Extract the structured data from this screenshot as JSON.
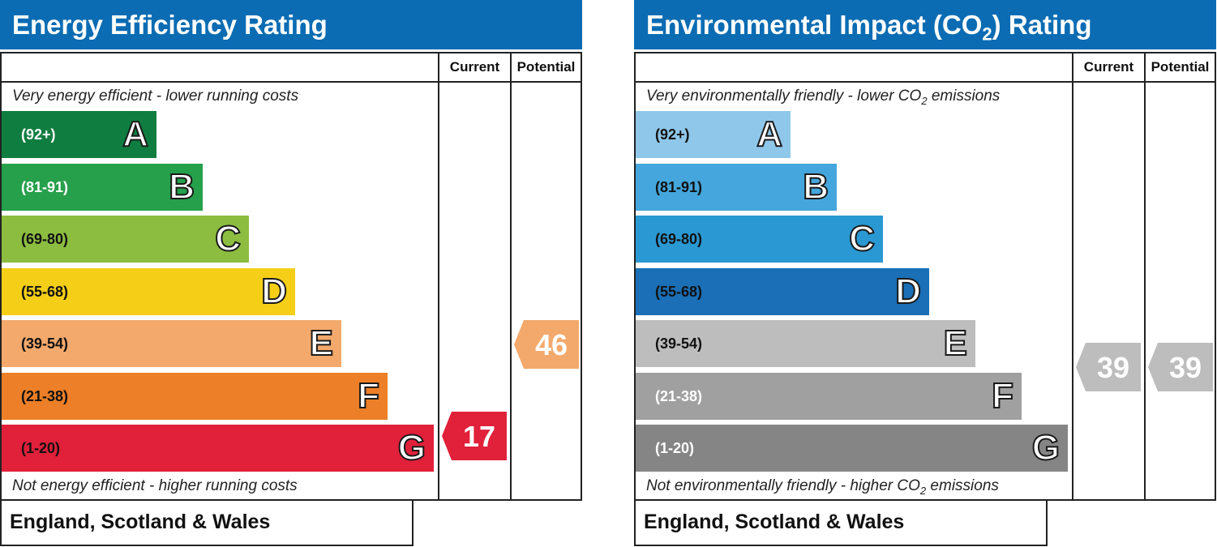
{
  "chart_data": [
    {
      "type": "bar",
      "title": "Energy Efficiency Rating",
      "columns": [
        "Current",
        "Potential"
      ],
      "top_note": "Very energy efficient - lower running costs",
      "bottom_note": "Not energy efficient - higher running costs",
      "footer": "England, Scotland & Wales",
      "bands": [
        {
          "letter": "A",
          "range": "(92+)",
          "min": 92,
          "max": 100,
          "color": "#0f7d3f",
          "text_light": true
        },
        {
          "letter": "B",
          "range": "(81-91)",
          "min": 81,
          "max": 91,
          "color": "#26a04b",
          "text_light": true
        },
        {
          "letter": "C",
          "range": "(69-80)",
          "min": 69,
          "max": 80,
          "color": "#8cbd40",
          "text_light": false
        },
        {
          "letter": "D",
          "range": "(55-68)",
          "min": 55,
          "max": 68,
          "color": "#f5cf17",
          "text_light": false
        },
        {
          "letter": "E",
          "range": "(39-54)",
          "min": 39,
          "max": 54,
          "color": "#f3a96b",
          "text_light": false
        },
        {
          "letter": "F",
          "range": "(21-38)",
          "min": 21,
          "max": 38,
          "color": "#ec7f27",
          "text_light": false
        },
        {
          "letter": "G",
          "range": "(1-20)",
          "min": 1,
          "max": 20,
          "color": "#e1203a",
          "text_light": false
        }
      ],
      "current": {
        "value": 17,
        "band": "G",
        "color": "#e1203a"
      },
      "potential": {
        "value": 46,
        "band": "E",
        "color": "#f3a96b"
      }
    },
    {
      "type": "bar",
      "title_main": "Environmental Impact (CO",
      "title_sub": "2",
      "title_end": ") Rating",
      "columns": [
        "Current",
        "Potential"
      ],
      "top_note_main": "Very environmentally friendly - lower CO",
      "top_note_sub": "2",
      "top_note_end": " emissions",
      "bottom_note_main": "Not environmentally friendly - higher CO",
      "bottom_note_sub": "2",
      "bottom_note_end": " emissions",
      "footer": "England, Scotland & Wales",
      "bands": [
        {
          "letter": "A",
          "range": "(92+)",
          "min": 92,
          "max": 100,
          "color": "#8fc7ea",
          "text_light": false
        },
        {
          "letter": "B",
          "range": "(81-91)",
          "min": 81,
          "max": 91,
          "color": "#44a6dc",
          "text_light": false
        },
        {
          "letter": "C",
          "range": "(69-80)",
          "min": 69,
          "max": 80,
          "color": "#2a98d2",
          "text_light": false
        },
        {
          "letter": "D",
          "range": "(55-68)",
          "min": 55,
          "max": 68,
          "color": "#1a6fb6",
          "text_light": false
        },
        {
          "letter": "E",
          "range": "(39-54)",
          "min": 39,
          "max": 54,
          "color": "#bdbdbd",
          "text_light": false
        },
        {
          "letter": "F",
          "range": "(21-38)",
          "min": 21,
          "max": 38,
          "color": "#a0a0a0",
          "text_light": true
        },
        {
          "letter": "G",
          "range": "(1-20)",
          "min": 1,
          "max": 20,
          "color": "#858585",
          "text_light": true
        }
      ],
      "current": {
        "value": 39,
        "band": "E",
        "color": "#bdbdbd"
      },
      "potential": {
        "value": 39,
        "band": "E",
        "color": "#bdbdbd"
      }
    }
  ]
}
